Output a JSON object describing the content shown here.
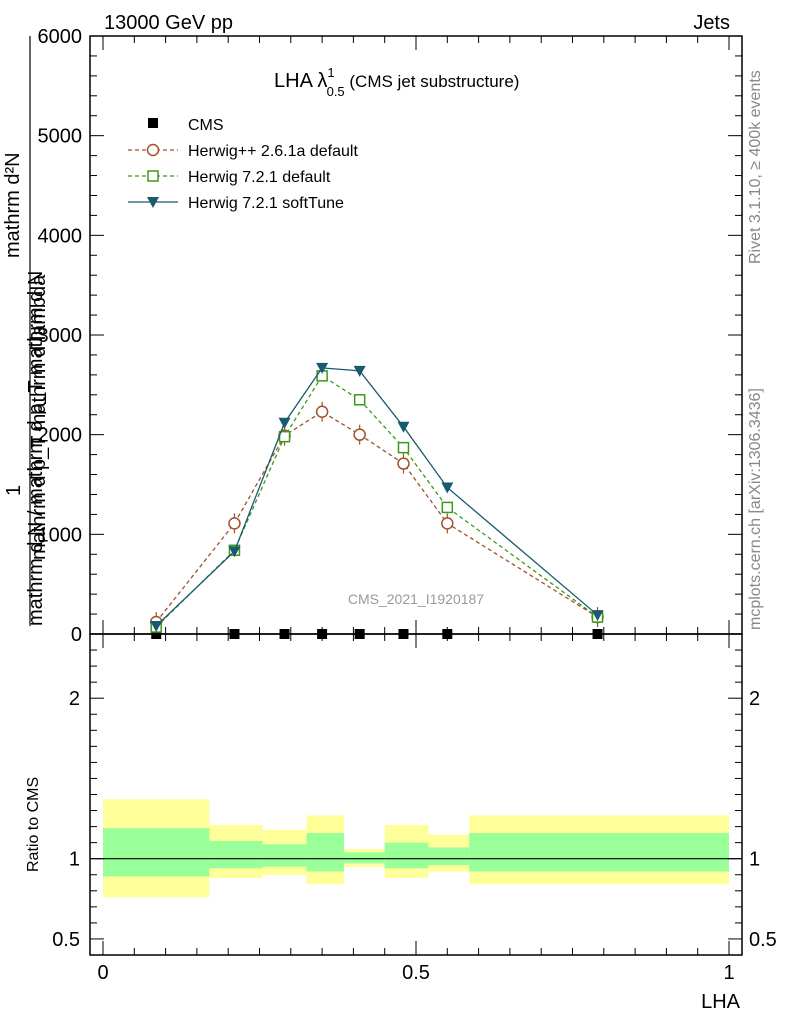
{
  "header": {
    "left": "13000 GeV pp",
    "right": "Jets"
  },
  "title": {
    "main": "LHA λ",
    "sup": "1",
    "sub": "0.5",
    "suffix": " (CMS jet substructure)"
  },
  "side_text": {
    "rivet": "Rivet 3.1.10, ≥ 400k events",
    "mcplots": "mcplots.cern.ch [arXiv:1306.3436]"
  },
  "watermark": "CMS_2021_I1920187",
  "colors": {
    "cms": "#000000",
    "herwigpp": "#a0522d",
    "herwig_default": "#3a9a1a",
    "herwig_soft": "#1a5a6e",
    "band_inner": "#99ff99",
    "band_outer": "#ffff99"
  },
  "chart_data": [
    {
      "type": "line",
      "panel": "main",
      "ylabel_numerator": "1",
      "ylabel_denominator": "mathrm d N / mathrm d p_T mathrm d N",
      "ylabel_top": "mathrm d²N",
      "ylabel_bottom": "mathrm d p_T mathrm d lambda",
      "xlim": [
        0,
        1
      ],
      "ylim": [
        0,
        6000
      ],
      "yticks": [
        0,
        1000,
        2000,
        3000,
        4000,
        5000,
        6000
      ],
      "ytick_labels": [
        "0",
        "1000",
        "2000",
        "3000",
        "4000",
        "5000",
        "6000"
      ],
      "legend_position": "top-left",
      "series": [
        {
          "name": "CMS",
          "style": "square-filled",
          "x": [
            0.085,
            0.21,
            0.29,
            0.35,
            0.41,
            0.48,
            0.55,
            0.79
          ],
          "y": [
            0,
            0,
            0,
            0,
            0,
            0,
            0,
            0
          ]
        },
        {
          "name": "Herwig++ 2.6.1a default",
          "style": "circle-open-dashed",
          "x": [
            0.085,
            0.21,
            0.29,
            0.35,
            0.41,
            0.48,
            0.55,
            0.79
          ],
          "y": [
            120,
            1110,
            1990,
            2230,
            2000,
            1710,
            1110,
            170
          ]
        },
        {
          "name": "Herwig 7.2.1 default",
          "style": "square-open-dashed",
          "x": [
            0.085,
            0.21,
            0.29,
            0.35,
            0.41,
            0.48,
            0.55,
            0.79
          ],
          "y": [
            70,
            840,
            1980,
            2590,
            2350,
            1870,
            1270,
            170
          ]
        },
        {
          "name": "Herwig 7.2.1 softTune",
          "style": "triangle-down-solid",
          "x": [
            0.085,
            0.21,
            0.29,
            0.35,
            0.41,
            0.48,
            0.55,
            0.79
          ],
          "y": [
            80,
            830,
            2120,
            2670,
            2640,
            2080,
            1470,
            190
          ]
        }
      ]
    },
    {
      "type": "area",
      "panel": "ratio",
      "ylabel": "Ratio to CMS",
      "xlabel": "LHA",
      "xlim": [
        0,
        1
      ],
      "ylim": [
        0.4,
        2.4
      ],
      "yticks": [
        0.5,
        1,
        2
      ],
      "ytick_labels": [
        "0.5",
        "1",
        "2"
      ],
      "xticks": [
        0,
        0.5,
        1
      ],
      "xtick_labels": [
        "0",
        "0.5",
        "1"
      ],
      "reference_line": 1,
      "bins": [
        {
          "x0": 0.0,
          "x1": 0.17,
          "inner": [
            0.89,
            1.19
          ],
          "outer": [
            0.76,
            1.37
          ]
        },
        {
          "x0": 0.17,
          "x1": 0.255,
          "inner": [
            0.94,
            1.11
          ],
          "outer": [
            0.88,
            1.21
          ]
        },
        {
          "x0": 0.255,
          "x1": 0.325,
          "inner": [
            0.95,
            1.09
          ],
          "outer": [
            0.9,
            1.18
          ]
        },
        {
          "x0": 0.325,
          "x1": 0.385,
          "inner": [
            0.92,
            1.16
          ],
          "outer": [
            0.84,
            1.27
          ]
        },
        {
          "x0": 0.385,
          "x1": 0.45,
          "inner": [
            0.97,
            1.04
          ],
          "outer": [
            0.95,
            1.06
          ]
        },
        {
          "x0": 0.45,
          "x1": 0.52,
          "inner": [
            0.94,
            1.1
          ],
          "outer": [
            0.88,
            1.21
          ]
        },
        {
          "x0": 0.52,
          "x1": 0.585,
          "inner": [
            0.96,
            1.07
          ],
          "outer": [
            0.92,
            1.15
          ]
        },
        {
          "x0": 0.585,
          "x1": 1.0,
          "inner": [
            0.92,
            1.16
          ],
          "outer": [
            0.84,
            1.27
          ]
        }
      ]
    }
  ]
}
